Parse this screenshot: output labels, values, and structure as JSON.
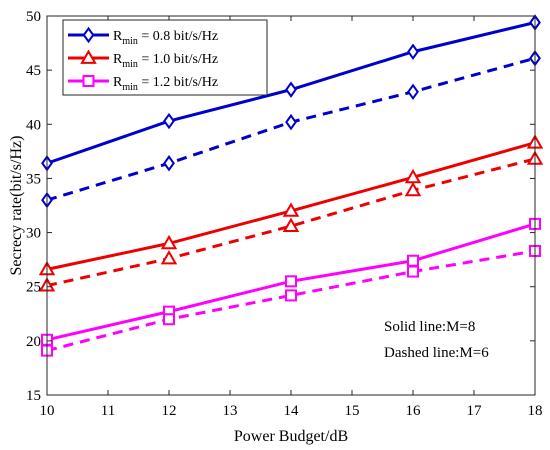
{
  "chart_data": {
    "type": "line",
    "xlabel": "Power Budget/dB",
    "ylabel": "Secrecy rate(bit/s/Hz)",
    "xlim": [
      10,
      18
    ],
    "ylim": [
      15,
      50
    ],
    "xticks": [
      "10",
      "11",
      "12",
      "13",
      "14",
      "15",
      "16",
      "17",
      "18"
    ],
    "yticks": [
      "15",
      "20",
      "25",
      "30",
      "35",
      "40",
      "45",
      "50"
    ],
    "grid": false,
    "legend_position": "top-left",
    "x": [
      10,
      12,
      14,
      16,
      18
    ],
    "series": [
      {
        "name": "R_min = 0.8 bit/s/Hz",
        "label_main": "R",
        "label_sub": "min",
        "label_rest": " = 0.8 bit/s/Hz",
        "line": "solid",
        "color": "#0000cc",
        "marker": "diamond",
        "legend": true,
        "values": [
          36.4,
          40.3,
          43.2,
          46.7,
          49.4
        ]
      },
      {
        "name": "R_min = 0.8 bit/s/Hz, M=6",
        "line": "dashed",
        "color": "#0000cc",
        "marker": "diamond",
        "legend": false,
        "values": [
          33.0,
          36.4,
          40.2,
          43.0,
          46.1
        ]
      },
      {
        "name": "R_min = 1.0 bit/s/Hz",
        "label_main": "R",
        "label_sub": "min",
        "label_rest": " = 1.0 bit/s/Hz",
        "line": "solid",
        "color": "#ee0000",
        "marker": "triangle",
        "legend": true,
        "values": [
          26.6,
          29.0,
          32.0,
          35.1,
          38.3
        ]
      },
      {
        "name": "R_min = 1.0 bit/s/Hz, M=6",
        "line": "dashed",
        "color": "#ee0000",
        "marker": "triangle",
        "legend": false,
        "values": [
          25.1,
          27.6,
          30.6,
          33.9,
          36.8
        ]
      },
      {
        "name": "R_min = 1.2 bit/s/Hz",
        "label_main": "R",
        "label_sub": "min",
        "label_rest": " = 1.2 bit/s/Hz",
        "line": "solid",
        "color": "#ff00ff",
        "marker": "square",
        "legend": true,
        "values": [
          20.1,
          22.7,
          25.5,
          27.4,
          30.8
        ]
      },
      {
        "name": "R_min = 1.2 bit/s/Hz, M=6",
        "line": "dashed",
        "color": "#ff00ff",
        "marker": "square",
        "legend": false,
        "values": [
          19.1,
          22.0,
          24.2,
          26.4,
          28.3
        ]
      }
    ],
    "annotations": [
      "Solid line:M=8",
      "Dashed line:M=6"
    ]
  }
}
